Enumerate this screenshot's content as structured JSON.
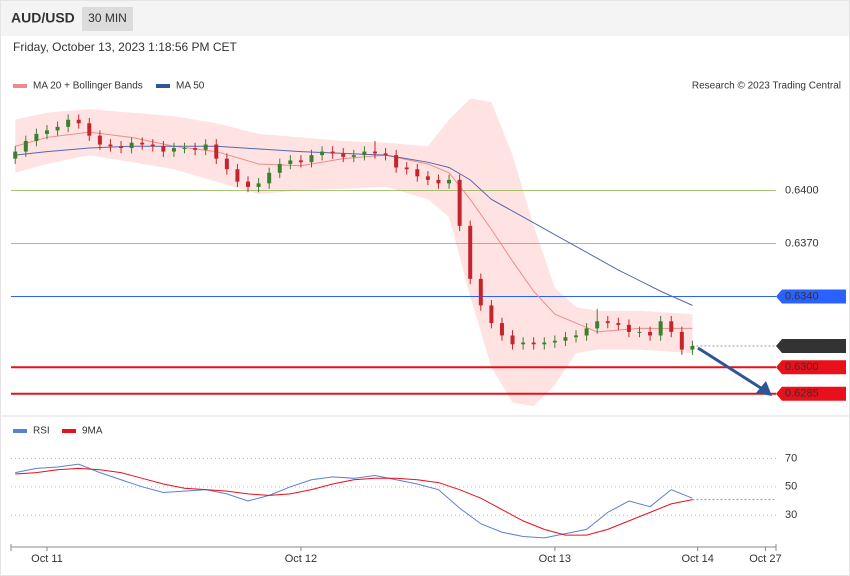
{
  "chart_data": {
    "type": "candlestick",
    "title": "AUD/USD",
    "interval": "30 MIN",
    "subtitle": "Friday, October 13, 2023 1:18:56 PM CET",
    "annotation": "Research © 2023 Trading Central",
    "up_color": "#3d7f2f",
    "down_color": "#c4252c",
    "ylim": [
      0.6273,
      0.6454
    ],
    "xlim": [
      -3.4,
      68.9
    ],
    "xticks": [
      {
        "value": 0,
        "label": "Oct 11"
      },
      {
        "value": 24,
        "label": "Oct 12"
      },
      {
        "value": 48,
        "label": "Oct 13"
      },
      {
        "value": 61.5,
        "label": "Oct 14"
      },
      {
        "value": 67.9,
        "label": "Oct 27"
      }
    ],
    "x": [
      -3,
      -2,
      -1,
      0,
      1,
      2,
      3,
      4,
      5,
      6,
      7,
      8,
      9,
      10,
      11,
      12,
      13,
      14,
      15,
      16,
      17,
      18,
      19,
      20,
      21,
      22,
      23,
      24,
      25,
      26,
      27,
      28,
      29,
      30,
      31,
      32,
      33,
      34,
      35,
      36,
      37,
      38,
      39,
      40,
      41,
      42,
      43,
      44,
      45,
      46,
      47,
      48,
      49,
      50,
      51,
      52,
      53,
      54,
      55,
      56,
      57,
      58,
      59,
      60,
      61
    ],
    "open": [
      0.6418,
      0.6422,
      0.6428,
      0.6432,
      0.6434,
      0.6436,
      0.644,
      0.6438,
      0.6431,
      0.6426,
      0.6425,
      0.6424,
      0.6427,
      0.6426,
      0.6425,
      0.6422,
      0.6424,
      0.6424,
      0.6423,
      0.6426,
      0.6418,
      0.6412,
      0.6405,
      0.6402,
      0.6404,
      0.641,
      0.6415,
      0.6417,
      0.6416,
      0.642,
      0.6422,
      0.6421,
      0.6419,
      0.642,
      0.6422,
      0.6421,
      0.642,
      0.6413,
      0.6412,
      0.6408,
      0.6406,
      0.6404,
      0.6406,
      0.638,
      0.635,
      0.6335,
      0.6325,
      0.6318,
      0.6313,
      0.6314,
      0.6313,
      0.6314,
      0.6315,
      0.6317,
      0.6318,
      0.6322,
      0.6326,
      0.6325,
      0.6324,
      0.632,
      0.632,
      0.6318,
      0.6326,
      0.632,
      0.631
    ],
    "high": [
      0.6425,
      0.6431,
      0.6435,
      0.6437,
      0.6439,
      0.6443,
      0.6443,
      0.6441,
      0.6434,
      0.6429,
      0.6428,
      0.643,
      0.643,
      0.6429,
      0.6428,
      0.6427,
      0.6427,
      0.6427,
      0.6429,
      0.6429,
      0.6421,
      0.6415,
      0.6408,
      0.6407,
      0.6413,
      0.6418,
      0.642,
      0.642,
      0.6423,
      0.6425,
      0.6425,
      0.6424,
      0.6423,
      0.6425,
      0.6428,
      0.6424,
      0.6423,
      0.6416,
      0.6415,
      0.6411,
      0.6409,
      0.6409,
      0.6409,
      0.6383,
      0.6353,
      0.6338,
      0.6328,
      0.6321,
      0.6317,
      0.6317,
      0.6317,
      0.6318,
      0.632,
      0.6321,
      0.6325,
      0.6333,
      0.6329,
      0.6328,
      0.6327,
      0.6323,
      0.6323,
      0.6329,
      0.6329,
      0.6323,
      0.6315
    ],
    "low": [
      0.6415,
      0.6419,
      0.6425,
      0.6429,
      0.6431,
      0.6433,
      0.6435,
      0.6428,
      0.6423,
      0.6422,
      0.6421,
      0.6421,
      0.6423,
      0.6422,
      0.6419,
      0.6419,
      0.6421,
      0.642,
      0.642,
      0.6415,
      0.6409,
      0.6402,
      0.6399,
      0.6399,
      0.6401,
      0.6407,
      0.6412,
      0.6413,
      0.6413,
      0.6417,
      0.6418,
      0.6416,
      0.6416,
      0.6417,
      0.6418,
      0.6417,
      0.641,
      0.6409,
      0.6405,
      0.6403,
      0.6401,
      0.6401,
      0.6377,
      0.6347,
      0.6332,
      0.6322,
      0.6315,
      0.631,
      0.631,
      0.631,
      0.631,
      0.6311,
      0.6312,
      0.6314,
      0.6315,
      0.6319,
      0.6322,
      0.6321,
      0.6317,
      0.6317,
      0.6315,
      0.6315,
      0.6317,
      0.6307,
      0.6307
    ],
    "close": [
      0.6422,
      0.6428,
      0.6432,
      0.6434,
      0.6436,
      0.644,
      0.6438,
      0.6431,
      0.6426,
      0.6425,
      0.6424,
      0.6427,
      0.6426,
      0.6425,
      0.6422,
      0.6424,
      0.6424,
      0.6423,
      0.6426,
      0.6418,
      0.6412,
      0.6405,
      0.6402,
      0.6404,
      0.641,
      0.6415,
      0.6417,
      0.6416,
      0.642,
      0.6422,
      0.6421,
      0.6419,
      0.642,
      0.6422,
      0.6421,
      0.642,
      0.6413,
      0.6412,
      0.6408,
      0.6406,
      0.6404,
      0.6406,
      0.638,
      0.635,
      0.6335,
      0.6325,
      0.6318,
      0.6313,
      0.6314,
      0.6313,
      0.6314,
      0.6315,
      0.6317,
      0.6318,
      0.6322,
      0.6326,
      0.6325,
      0.6324,
      0.632,
      0.632,
      0.6318,
      0.6326,
      0.632,
      0.631,
      0.6312
    ],
    "bands": {
      "color": "#ffe3e3",
      "x": [
        -3,
        0,
        4,
        8,
        12,
        16,
        20,
        24,
        28,
        32,
        36,
        38,
        40,
        42,
        44,
        46,
        48,
        50,
        52,
        56,
        61
      ],
      "upper": [
        0.644,
        0.6444,
        0.6446,
        0.6444,
        0.6442,
        0.6438,
        0.6432,
        0.643,
        0.6428,
        0.6427,
        0.6425,
        0.644,
        0.6452,
        0.645,
        0.642,
        0.638,
        0.6345,
        0.6334,
        0.6332,
        0.6332,
        0.633
      ],
      "lower": [
        0.641,
        0.6415,
        0.642,
        0.6416,
        0.6412,
        0.6405,
        0.6398,
        0.64,
        0.6401,
        0.6402,
        0.6395,
        0.6385,
        0.634,
        0.63,
        0.628,
        0.6278,
        0.629,
        0.6308,
        0.631,
        0.631,
        0.6308
      ]
    },
    "series": [
      {
        "name": "MA 20 + Bollinger Bands",
        "color": "#f08a8a",
        "x": [
          -3,
          0,
          4,
          8,
          12,
          16,
          20,
          24,
          28,
          32,
          36,
          38,
          40,
          42,
          44,
          46,
          48,
          52,
          56,
          61
        ],
        "values": [
          0.6425,
          0.643,
          0.6433,
          0.643,
          0.6425,
          0.6422,
          0.6415,
          0.6414,
          0.6418,
          0.642,
          0.6415,
          0.641,
          0.6395,
          0.6378,
          0.636,
          0.6343,
          0.633,
          0.632,
          0.6322,
          0.6322
        ]
      },
      {
        "name": "MA 50",
        "color": "#5468b0",
        "x": [
          -3,
          0,
          4,
          8,
          16,
          24,
          32,
          36,
          38,
          40,
          42,
          45,
          48,
          51,
          54,
          58,
          61
        ],
        "values": [
          0.642,
          0.6422,
          0.6424,
          0.6425,
          0.6425,
          0.6422,
          0.642,
          0.6416,
          0.6413,
          0.6406,
          0.6395,
          0.6385,
          0.6375,
          0.6365,
          0.6355,
          0.6343,
          0.6335
        ]
      }
    ],
    "legend_swatches": [
      "#f08a8a",
      "#2f5597"
    ],
    "levels": [
      {
        "value": 0.64,
        "label": "0.6400",
        "color": "#6aa121",
        "style": "support"
      },
      {
        "value": 0.637,
        "label": "0.6370",
        "color": "#6aa121",
        "style": "support"
      },
      {
        "value": 0.634,
        "label": "0.6340",
        "color": "#2962ff",
        "style": "pivot"
      },
      {
        "value": 0.6312,
        "label": "0.6312",
        "color": "#333333",
        "style": "last"
      },
      {
        "value": 0.63,
        "label": "0.6300",
        "color": "#e8101a",
        "style": "resistance"
      },
      {
        "value": 0.6285,
        "label": "0.6285",
        "color": "#e8101a",
        "style": "resistance"
      }
    ],
    "rsi": {
      "ylim": [
        9,
        83
      ],
      "yticks": [
        70,
        50,
        30
      ],
      "x": [
        -3,
        -1,
        1,
        3,
        5,
        7,
        9,
        11,
        13,
        15,
        17,
        19,
        21,
        23,
        25,
        27,
        29,
        31,
        33,
        35,
        37,
        39,
        41,
        43,
        45,
        47,
        49,
        51,
        53,
        55,
        57,
        59,
        61
      ],
      "series": [
        {
          "name": "RSI",
          "color": "#5a7fd6",
          "values": [
            60,
            63,
            64,
            66,
            60,
            55,
            50,
            46,
            47,
            48,
            45,
            40,
            44,
            50,
            55,
            57,
            56,
            58,
            55,
            52,
            48,
            35,
            24,
            18,
            15,
            14,
            17,
            20,
            32,
            40,
            36,
            48,
            42
          ]
        },
        {
          "name": "9MA",
          "color": "#e8101a",
          "values": [
            59,
            60,
            62,
            63,
            62,
            60,
            56,
            52,
            49,
            48,
            47,
            45,
            44,
            45,
            48,
            52,
            55,
            56,
            56,
            55,
            53,
            48,
            42,
            34,
            26,
            20,
            16,
            16,
            20,
            26,
            32,
            38,
            41
          ]
        }
      ]
    }
  }
}
